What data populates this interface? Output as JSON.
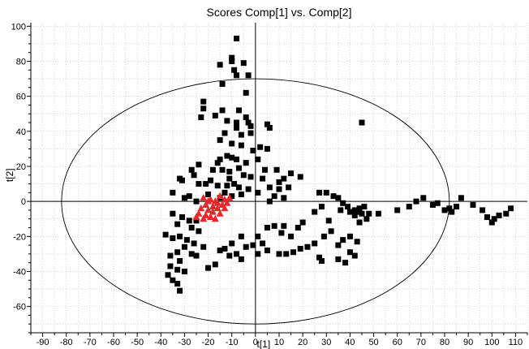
{
  "chart_data": {
    "type": "scatter",
    "title": "Scores Comp[1] vs. Comp[2]",
    "xlabel": "t[1]",
    "ylabel": "t[2]",
    "xlim": [
      -95,
      115
    ],
    "ylim": [
      -75,
      102
    ],
    "x_ticks": [
      -90,
      -80,
      -70,
      -60,
      -50,
      -40,
      -30,
      -20,
      -10,
      0,
      10,
      20,
      30,
      40,
      50,
      60,
      70,
      80,
      90,
      100,
      110
    ],
    "y_ticks": [
      -60,
      -40,
      -20,
      0,
      20,
      40,
      60,
      80,
      100
    ],
    "grid": true,
    "ellipse": {
      "center": [
        0,
        0
      ],
      "rx": 82,
      "ry": 70,
      "color": "#000000"
    },
    "series": [
      {
        "marker": "square",
        "color": "#000000",
        "points": [
          [
            -8,
            93
          ],
          [
            -10,
            82
          ],
          [
            -10,
            80
          ],
          [
            -15,
            78
          ],
          [
            -5,
            79
          ],
          [
            -9,
            75
          ],
          [
            -8,
            72
          ],
          [
            -14,
            67
          ],
          [
            -3,
            72
          ],
          [
            -4,
            62
          ],
          [
            -22,
            57
          ],
          [
            -22,
            53
          ],
          [
            -23,
            48
          ],
          [
            -17,
            49
          ],
          [
            -14,
            52
          ],
          [
            -7,
            52
          ],
          [
            -4,
            48
          ],
          [
            -12,
            46
          ],
          [
            -8,
            45
          ],
          [
            -3,
            45
          ],
          [
            -2,
            43
          ],
          [
            5,
            44
          ],
          [
            6,
            42
          ],
          [
            -8,
            42
          ],
          [
            -6,
            38
          ],
          [
            -2,
            39
          ],
          [
            -13,
            39
          ],
          [
            -15,
            35
          ],
          [
            -10,
            33
          ],
          [
            -6,
            32
          ],
          [
            -1,
            29
          ],
          [
            2,
            31
          ],
          [
            5,
            30
          ],
          [
            -12,
            26
          ],
          [
            -10,
            25
          ],
          [
            -15,
            24
          ],
          [
            -16,
            22
          ],
          [
            -8,
            24
          ],
          [
            -4,
            22
          ],
          [
            1,
            24
          ],
          [
            -24,
            21
          ],
          [
            -27,
            18
          ],
          [
            -32,
            13
          ],
          [
            -26,
            15
          ],
          [
            -18,
            18
          ],
          [
            -14,
            18
          ],
          [
            -11,
            17
          ],
          [
            -7,
            19
          ],
          [
            4,
            18
          ],
          [
            9,
            18
          ],
          [
            15,
            16
          ],
          [
            -5,
            15
          ],
          [
            -2,
            14
          ],
          [
            3,
            13
          ],
          [
            10,
            11
          ],
          [
            12,
            13
          ],
          [
            19,
            14
          ],
          [
            -11,
            13
          ],
          [
            -19,
            12
          ],
          [
            -24,
            10
          ],
          [
            -31,
            12
          ],
          [
            -21,
            10
          ],
          [
            -16,
            9
          ],
          [
            -12,
            9
          ],
          [
            -7,
            8
          ],
          [
            -3,
            7
          ],
          [
            -9,
            10
          ],
          [
            6,
            8
          ],
          [
            10,
            7
          ],
          [
            14,
            8
          ],
          [
            -13,
            5
          ],
          [
            -15,
            2
          ],
          [
            -10,
            3
          ],
          [
            -6,
            4
          ],
          [
            1,
            5
          ],
          [
            -20,
            4
          ],
          [
            -28,
            3
          ],
          [
            -35,
            5
          ],
          [
            -30,
            2
          ],
          [
            -25,
            0
          ],
          [
            8,
            3
          ],
          [
            12,
            2
          ],
          [
            6,
            0
          ],
          [
            -35,
            -7
          ],
          [
            -31,
            -9
          ],
          [
            -28,
            -11
          ],
          [
            -25,
            -11
          ],
          [
            -33,
            -13
          ],
          [
            -27,
            -15
          ],
          [
            -24,
            -17
          ],
          [
            -38,
            -19
          ],
          [
            -35,
            -21
          ],
          [
            -32,
            -20
          ],
          [
            -29,
            -22
          ],
          [
            -26,
            -24
          ],
          [
            -30,
            -26
          ],
          [
            -22,
            -26
          ],
          [
            -27,
            -30
          ],
          [
            -33,
            -29
          ],
          [
            -36,
            -31
          ],
          [
            -32,
            -34
          ],
          [
            -36,
            -37
          ],
          [
            -33,
            -39
          ],
          [
            -30,
            -40
          ],
          [
            -37,
            -42
          ],
          [
            -35,
            -45
          ],
          [
            -33,
            -47
          ],
          [
            -32,
            -51
          ],
          [
            -25,
            -31
          ],
          [
            -20,
            -38
          ],
          [
            27,
            5
          ],
          [
            30,
            5
          ],
          [
            33,
            3
          ],
          [
            35,
            2
          ],
          [
            37,
            -1
          ],
          [
            36,
            -5
          ],
          [
            39,
            -3
          ],
          [
            42,
            -5
          ],
          [
            43,
            -6
          ],
          [
            44,
            -4
          ],
          [
            46,
            -3
          ],
          [
            45,
            -7
          ],
          [
            42,
            -8
          ],
          [
            40,
            -6
          ],
          [
            48,
            -7
          ],
          [
            28,
            -3
          ],
          [
            25,
            -6
          ],
          [
            31,
            -11
          ],
          [
            20,
            -12
          ],
          [
            18,
            -15
          ],
          [
            12,
            -14
          ],
          [
            15,
            -20
          ],
          [
            11,
            -18
          ],
          [
            8,
            -14
          ],
          [
            5,
            -15
          ],
          [
            1,
            -20
          ],
          [
            3,
            -24
          ],
          [
            5,
            -28
          ],
          [
            1,
            -30
          ],
          [
            -1,
            -25
          ],
          [
            -4,
            -26
          ],
          [
            -6,
            -20
          ],
          [
            -10,
            -24
          ],
          [
            -13,
            -27
          ],
          [
            -8,
            -30
          ],
          [
            -6,
            -33
          ],
          [
            -11,
            -31
          ],
          [
            -15,
            -28
          ],
          [
            -17,
            -36
          ],
          [
            10,
            -30
          ],
          [
            13,
            -30
          ],
          [
            16,
            -29
          ],
          [
            19,
            -27
          ],
          [
            22,
            -26
          ],
          [
            25,
            -24
          ],
          [
            29,
            -20
          ],
          [
            32,
            -17
          ],
          [
            35,
            -25
          ],
          [
            37,
            -22
          ],
          [
            40,
            -20
          ],
          [
            43,
            -23
          ],
          [
            28,
            -34
          ],
          [
            35,
            -33
          ],
          [
            40,
            -29
          ],
          [
            42,
            -31
          ],
          [
            38,
            -35
          ],
          [
            44,
            -12
          ],
          [
            47,
            -10
          ],
          [
            45,
            45
          ],
          [
            52,
            -7
          ],
          [
            60,
            -5
          ],
          [
            65,
            -3
          ],
          [
            68,
            0
          ],
          [
            71,
            2
          ],
          [
            75,
            -2
          ],
          [
            77,
            -1
          ],
          [
            80,
            -5
          ],
          [
            82,
            -4
          ],
          [
            83,
            -6
          ],
          [
            85,
            -3
          ],
          [
            87,
            2
          ],
          [
            92,
            -2
          ],
          [
            96,
            -5
          ],
          [
            98,
            -9
          ],
          [
            101,
            -10
          ],
          [
            103,
            -8
          ],
          [
            106,
            -7
          ],
          [
            108,
            -4
          ],
          [
            100,
            -12
          ],
          [
            27,
            -32
          ]
        ]
      },
      {
        "marker": "triangle",
        "color": "#e8282a",
        "points": [
          [
            -22,
            2
          ],
          [
            -19,
            1
          ],
          [
            -17,
            0
          ],
          [
            -15,
            3
          ],
          [
            -13,
            1
          ],
          [
            -11,
            2
          ],
          [
            -21,
            -2
          ],
          [
            -18,
            -3
          ],
          [
            -16,
            -1
          ],
          [
            -14,
            -2
          ],
          [
            -23,
            -4
          ],
          [
            -20,
            -5
          ],
          [
            -24,
            -7
          ],
          [
            -21,
            -8
          ],
          [
            -18,
            -6
          ],
          [
            -16,
            -4
          ],
          [
            -12,
            -1
          ],
          [
            -25,
            -9
          ],
          [
            -22,
            -10
          ],
          [
            -19,
            -9
          ],
          [
            -15,
            -7
          ],
          [
            -13,
            -4
          ],
          [
            -20,
            0
          ],
          [
            -17,
            -10
          ]
        ]
      }
    ]
  }
}
